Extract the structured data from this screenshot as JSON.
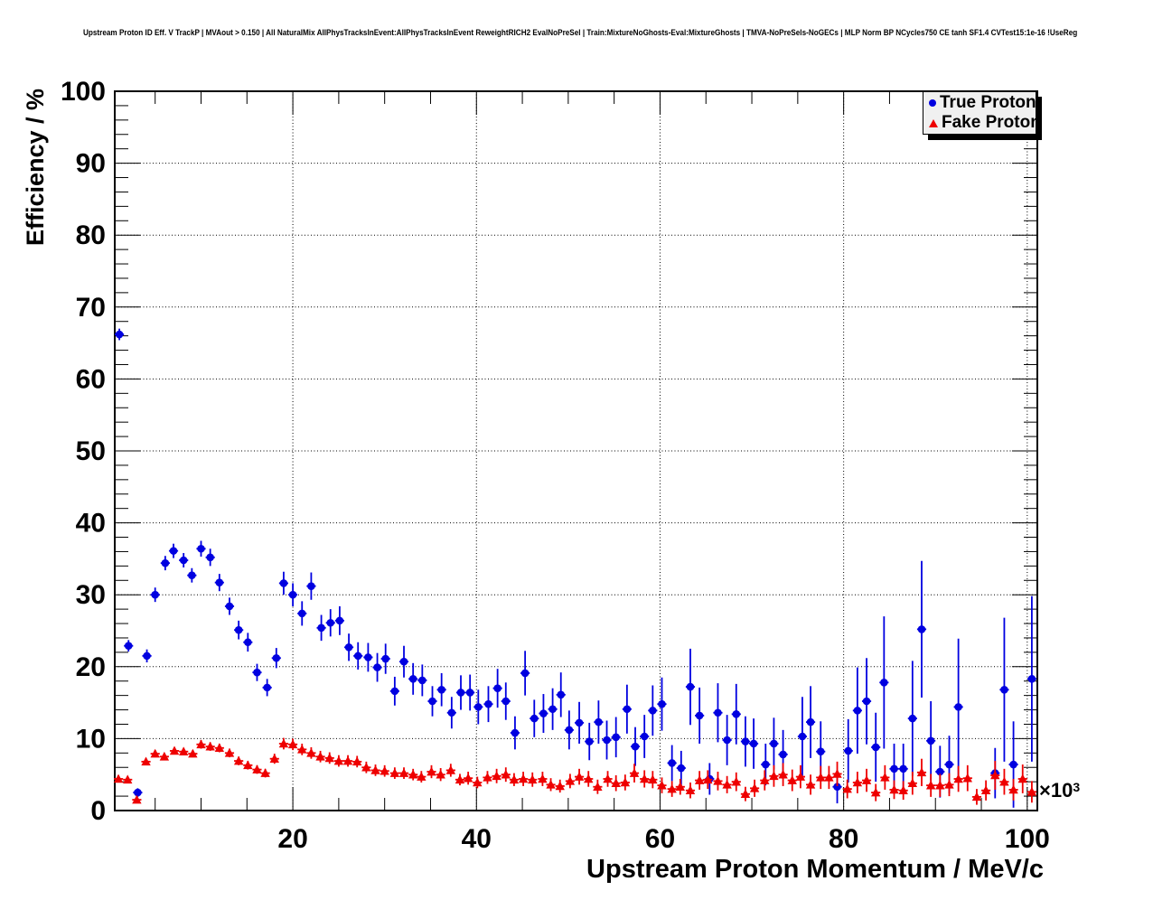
{
  "title": "Upstream Proton ID Eff. V TrackP | MVAout > 0.150 | All NaturalMix AllPhysTracksInEvent:AllPhysTracksInEvent ReweightRICH2 EvalNoPreSel | Train:MixtureNoGhosts-Eval:MixtureGhosts | TMVA-NoPreSels-NoGECs | MLP Norm BP NCycles750 CE tanh SF1.4 CVTest15:1e-16 !UseReg",
  "legend": {
    "entries": [
      {
        "label": "True Proton",
        "marker": "circle",
        "color": "#0000e0"
      },
      {
        "label": "Fake Proton",
        "marker": "triangle",
        "color": "#ee0000"
      }
    ]
  },
  "axes": {
    "y_title": "Efficiency / %",
    "x_title": "Upstream Proton Momentum / MeV/c",
    "x_scale_base": "×10",
    "x_scale_exp": "3",
    "y_ticks": [
      0,
      10,
      20,
      30,
      40,
      50,
      60,
      70,
      80,
      90,
      100
    ],
    "x_ticks": [
      20,
      40,
      60,
      80,
      100
    ]
  },
  "chart_data": {
    "type": "scatter",
    "title": "Upstream Proton ID Eff. V TrackP | MVAout > 0.150 | All NaturalMix AllPhysTracksInEvent:AllPhysTracksInEvent ReweightRICH2 EvalNoPreSel | Train:MixtureNoGhosts-Eval:MixtureGhosts | TMVA-NoPreSels-NoGECs | MLP Norm BP NCycles750 CE tanh SF1.4 CVTest15:1e-16 !UseReg",
    "xlabel": "Upstream Proton Momentum / MeV/c",
    "ylabel": "Efficiency / %",
    "x_unit_note": "x values in units of 10^3 MeV/c",
    "xlim": [
      0.6,
      101.1
    ],
    "ylim": [
      0,
      100
    ],
    "grid": "dotted-major",
    "legend_position": "top-right",
    "point_format": "[x, y, yerr]",
    "x_bin_halfwidth": 0.5,
    "series": [
      {
        "name": "True Proton",
        "marker": "circle",
        "color": "#0000e0",
        "points": [
          [
            1.1,
            66.2,
            0.8
          ],
          [
            2.1,
            22.9,
            0.8
          ],
          [
            3.1,
            2.5,
            0.6
          ],
          [
            4.1,
            21.5,
            0.9
          ],
          [
            5.0,
            30.0,
            1.0
          ],
          [
            6.1,
            34.4,
            1.0
          ],
          [
            7.0,
            36.1,
            1.0
          ],
          [
            8.1,
            34.8,
            1.0
          ],
          [
            9.0,
            32.7,
            1.0
          ],
          [
            10.0,
            36.4,
            1.1
          ],
          [
            11.0,
            35.2,
            1.2
          ],
          [
            12.0,
            31.7,
            1.2
          ],
          [
            13.1,
            28.4,
            1.2
          ],
          [
            14.1,
            25.1,
            1.3
          ],
          [
            15.1,
            23.4,
            1.3
          ],
          [
            16.1,
            19.2,
            1.2
          ],
          [
            17.2,
            17.1,
            1.2
          ],
          [
            18.2,
            21.2,
            1.4
          ],
          [
            19.0,
            31.6,
            1.6
          ],
          [
            20.0,
            30.0,
            1.6
          ],
          [
            21.0,
            27.4,
            1.7
          ],
          [
            22.0,
            31.2,
            1.9
          ],
          [
            23.1,
            25.4,
            1.8
          ],
          [
            24.1,
            26.1,
            1.9
          ],
          [
            25.1,
            26.4,
            2.0
          ],
          [
            26.1,
            22.7,
            1.9
          ],
          [
            27.1,
            21.5,
            1.9
          ],
          [
            28.2,
            21.3,
            2.0
          ],
          [
            29.2,
            19.9,
            2.0
          ],
          [
            30.1,
            21.1,
            2.1
          ],
          [
            31.1,
            16.6,
            2.0
          ],
          [
            32.1,
            20.7,
            2.2
          ],
          [
            33.1,
            18.3,
            2.2
          ],
          [
            34.1,
            18.1,
            2.2
          ],
          [
            35.2,
            15.2,
            2.1
          ],
          [
            36.2,
            16.8,
            2.3
          ],
          [
            37.3,
            13.6,
            2.2
          ],
          [
            38.3,
            16.4,
            2.4
          ],
          [
            39.3,
            16.4,
            2.5
          ],
          [
            40.2,
            14.4,
            2.4
          ],
          [
            41.3,
            14.8,
            2.5
          ],
          [
            42.3,
            17.0,
            2.7
          ],
          [
            43.2,
            15.2,
            2.6
          ],
          [
            44.2,
            10.8,
            2.3
          ],
          [
            45.3,
            19.1,
            3.1
          ],
          [
            46.3,
            12.8,
            2.6
          ],
          [
            47.3,
            13.5,
            2.7
          ],
          [
            48.3,
            14.1,
            2.9
          ],
          [
            49.2,
            16.1,
            3.1
          ],
          [
            50.1,
            11.2,
            2.7
          ],
          [
            51.2,
            12.2,
            2.9
          ],
          [
            52.3,
            9.6,
            2.6
          ],
          [
            53.3,
            12.3,
            3.0
          ],
          [
            54.2,
            9.8,
            2.7
          ],
          [
            55.2,
            10.2,
            2.8
          ],
          [
            56.4,
            14.1,
            3.4
          ],
          [
            57.3,
            8.9,
            2.7
          ],
          [
            58.3,
            10.3,
            3.0
          ],
          [
            59.2,
            13.9,
            3.5
          ],
          [
            60.2,
            14.8,
            3.7
          ],
          [
            61.3,
            6.6,
            2.5
          ],
          [
            62.3,
            5.9,
            2.4
          ],
          [
            63.3,
            17.2,
            5.3
          ],
          [
            64.3,
            13.2,
            3.9
          ],
          [
            65.4,
            4.4,
            2.2
          ],
          [
            66.3,
            13.6,
            4.1
          ],
          [
            67.3,
            9.8,
            3.5
          ],
          [
            68.3,
            13.4,
            4.2
          ],
          [
            69.3,
            9.6,
            3.5
          ],
          [
            70.2,
            9.3,
            3.5
          ],
          [
            71.5,
            6.4,
            2.9
          ],
          [
            72.4,
            9.3,
            3.6
          ],
          [
            73.4,
            7.8,
            3.4
          ],
          [
            75.5,
            10.3,
            5.5
          ],
          [
            76.4,
            12.3,
            5.0
          ],
          [
            77.5,
            8.2,
            4.2
          ],
          [
            79.3,
            3.3,
            2.3
          ],
          [
            80.5,
            8.3,
            4.4
          ],
          [
            81.5,
            13.9,
            6.0
          ],
          [
            82.5,
            15.2,
            6.0
          ],
          [
            83.5,
            8.8,
            4.8
          ],
          [
            84.4,
            17.8,
            9.2
          ],
          [
            85.5,
            5.8,
            3.5
          ],
          [
            86.5,
            5.8,
            3.5
          ],
          [
            87.5,
            12.8,
            8.0
          ],
          [
            88.5,
            25.2,
            9.5
          ],
          [
            89.5,
            9.7,
            5.5
          ],
          [
            90.5,
            5.4,
            3.6
          ],
          [
            91.5,
            6.4,
            4.0
          ],
          [
            92.5,
            14.4,
            9.5
          ],
          [
            96.5,
            5.2,
            3.5
          ],
          [
            97.5,
            16.8,
            10.0
          ],
          [
            98.5,
            6.4,
            6.0
          ],
          [
            100.5,
            18.3,
            11.5
          ]
        ]
      },
      {
        "name": "Fake Proton",
        "marker": "triangle",
        "color": "#ee0000",
        "points": [
          [
            1.0,
            4.4,
            0.5
          ],
          [
            2.0,
            4.3,
            0.4
          ],
          [
            3.0,
            1.5,
            0.4
          ],
          [
            4.0,
            6.8,
            0.5
          ],
          [
            5.0,
            7.9,
            0.5
          ],
          [
            6.0,
            7.5,
            0.5
          ],
          [
            7.1,
            8.3,
            0.5
          ],
          [
            8.1,
            8.2,
            0.5
          ],
          [
            9.1,
            7.9,
            0.5
          ],
          [
            10.0,
            9.2,
            0.6
          ],
          [
            11.0,
            8.9,
            0.6
          ],
          [
            12.0,
            8.7,
            0.6
          ],
          [
            13.1,
            8.0,
            0.6
          ],
          [
            14.1,
            6.9,
            0.6
          ],
          [
            15.1,
            6.3,
            0.6
          ],
          [
            16.1,
            5.7,
            0.6
          ],
          [
            17.0,
            5.2,
            0.6
          ],
          [
            18.0,
            7.2,
            0.7
          ],
          [
            19.0,
            9.3,
            0.8
          ],
          [
            20.0,
            9.2,
            0.8
          ],
          [
            21.0,
            8.5,
            0.8
          ],
          [
            22.0,
            8.0,
            0.8
          ],
          [
            23.0,
            7.5,
            0.8
          ],
          [
            24.0,
            7.3,
            0.8
          ],
          [
            25.0,
            6.9,
            0.8
          ],
          [
            26.0,
            6.9,
            0.8
          ],
          [
            27.0,
            6.8,
            0.8
          ],
          [
            28.0,
            6.0,
            0.8
          ],
          [
            29.0,
            5.6,
            0.8
          ],
          [
            30.0,
            5.5,
            0.8
          ],
          [
            31.1,
            5.2,
            0.8
          ],
          [
            32.1,
            5.2,
            0.8
          ],
          [
            33.1,
            5.0,
            0.8
          ],
          [
            34.0,
            4.7,
            0.8
          ],
          [
            35.1,
            5.4,
            0.9
          ],
          [
            36.1,
            5.0,
            0.9
          ],
          [
            37.2,
            5.6,
            0.9
          ],
          [
            38.2,
            4.3,
            0.8
          ],
          [
            39.1,
            4.5,
            0.9
          ],
          [
            40.1,
            3.9,
            0.8
          ],
          [
            41.2,
            4.6,
            0.9
          ],
          [
            42.2,
            4.8,
            1.0
          ],
          [
            43.2,
            5.0,
            1.0
          ],
          [
            44.1,
            4.3,
            0.9
          ],
          [
            45.1,
            4.4,
            1.0
          ],
          [
            46.1,
            4.3,
            1.0
          ],
          [
            47.2,
            4.4,
            1.0
          ],
          [
            48.1,
            3.6,
            0.9
          ],
          [
            49.1,
            3.4,
            0.9
          ],
          [
            50.2,
            4.1,
            1.0
          ],
          [
            51.2,
            4.7,
            1.1
          ],
          [
            52.2,
            4.4,
            1.1
          ],
          [
            53.2,
            3.3,
            1.0
          ],
          [
            54.3,
            4.4,
            1.1
          ],
          [
            55.2,
            3.8,
            1.1
          ],
          [
            56.2,
            3.9,
            1.1
          ],
          [
            57.2,
            5.2,
            1.3
          ],
          [
            58.3,
            4.4,
            1.2
          ],
          [
            59.2,
            4.3,
            1.2
          ],
          [
            60.2,
            3.5,
            1.1
          ],
          [
            61.3,
            3.0,
            1.1
          ],
          [
            62.2,
            3.3,
            1.1
          ],
          [
            63.3,
            2.8,
            1.1
          ],
          [
            64.3,
            4.2,
            1.3
          ],
          [
            65.2,
            4.3,
            1.3
          ],
          [
            66.3,
            4.1,
            1.3
          ],
          [
            67.3,
            3.6,
            1.2
          ],
          [
            68.3,
            4.0,
            1.3
          ],
          [
            69.3,
            2.3,
            1.0
          ],
          [
            70.3,
            3.1,
            1.2
          ],
          [
            71.4,
            4.2,
            1.4
          ],
          [
            72.4,
            4.8,
            1.5
          ],
          [
            73.4,
            5.0,
            1.6
          ],
          [
            74.4,
            4.2,
            1.5
          ],
          [
            75.3,
            4.7,
            1.6
          ],
          [
            76.4,
            3.6,
            1.4
          ],
          [
            77.5,
            4.6,
            1.6
          ],
          [
            78.4,
            4.6,
            1.6
          ],
          [
            79.3,
            5.1,
            1.7
          ],
          [
            80.4,
            3.0,
            1.3
          ],
          [
            81.5,
            3.9,
            1.5
          ],
          [
            82.5,
            4.2,
            1.6
          ],
          [
            83.5,
            2.5,
            1.2
          ],
          [
            84.5,
            4.6,
            1.7
          ],
          [
            85.5,
            2.9,
            1.3
          ],
          [
            86.5,
            2.8,
            1.3
          ],
          [
            87.5,
            3.8,
            1.6
          ],
          [
            88.5,
            5.3,
            1.9
          ],
          [
            89.5,
            3.5,
            1.6
          ],
          [
            90.5,
            3.5,
            1.6
          ],
          [
            91.5,
            3.6,
            1.6
          ],
          [
            92.5,
            4.4,
            1.8
          ],
          [
            93.5,
            4.5,
            1.8
          ],
          [
            94.5,
            1.9,
            1.1
          ],
          [
            95.5,
            2.8,
            1.4
          ],
          [
            96.5,
            4.9,
            2.0
          ],
          [
            97.5,
            4.0,
            1.8
          ],
          [
            98.5,
            2.9,
            1.5
          ],
          [
            99.5,
            4.4,
            2.0
          ],
          [
            100.5,
            2.6,
            1.5
          ]
        ]
      }
    ]
  }
}
